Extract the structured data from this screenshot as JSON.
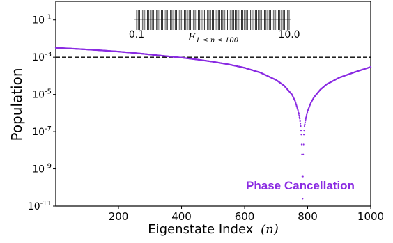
{
  "chart_data": {
    "type": "scatter",
    "xlabel": "Eigenstate Index",
    "xlabel_var": "(n)",
    "ylabel": "Population",
    "xlim": [
      1,
      1000
    ],
    "ylim": [
      1e-11,
      1
    ],
    "yscale": "log",
    "x_ticks": [
      "200",
      "400",
      "600",
      "800",
      "1000"
    ],
    "y_ticks": [
      {
        "base": "10",
        "exp": "-1"
      },
      {
        "base": "10",
        "exp": "-3"
      },
      {
        "base": "10",
        "exp": "-5"
      },
      {
        "base": "10",
        "exp": "-7"
      },
      {
        "base": "10",
        "exp": "-9"
      },
      {
        "base": "10",
        "exp": "-11"
      }
    ],
    "threshold": 0.001,
    "threshold_style": "dashed",
    "series_color": "#8a2be2",
    "series": [
      {
        "x": [
          1,
          50,
          100,
          150,
          200,
          250,
          300,
          350,
          400,
          450,
          500,
          550,
          600,
          650,
          700,
          725,
          750,
          760,
          770,
          775,
          778,
          780,
          782,
          784,
          786,
          788,
          790,
          795,
          800,
          810,
          820,
          840,
          860,
          900,
          950,
          1000
        ],
        "y": [
          0.0032,
          0.0029,
          0.0026,
          0.0023,
          0.002,
          0.0017,
          0.0014,
          0.00115,
          0.00095,
          0.00075,
          0.00057,
          0.00041,
          0.00027,
          0.00015,
          6e-05,
          3e-05,
          1e-05,
          4.5e-06,
          1.3e-06,
          5e-07,
          2e-07,
          7e-08,
          6e-09,
          2.5e-11,
          6e-09,
          7e-08,
          2e-07,
          6e-07,
          1.3e-06,
          3.5e-06,
          7e-06,
          1.8e-05,
          3.5e-05,
          8e-05,
          0.00016,
          0.0003
        ]
      }
    ],
    "annotation": "Phase Cancellation",
    "inset": {
      "xlabel_base": "E",
      "xlabel_sub": "1 ≤ n ≤ 100",
      "xlim_labels": [
        "0.1",
        "10.0"
      ],
      "line_count": 100
    }
  }
}
